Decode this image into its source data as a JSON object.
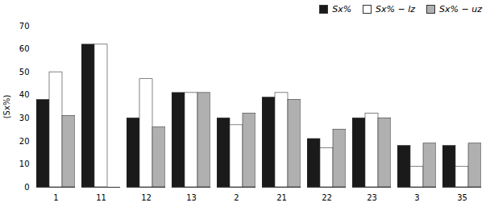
{
  "chart_data": {
    "type": "bar",
    "ylabel": "(Sx%)",
    "categories": [
      "1",
      "11",
      "12",
      "13",
      "2",
      "21",
      "22",
      "23",
      "3",
      "35"
    ],
    "series": [
      {
        "name": "Sx%",
        "color": "#1a1a1a",
        "values": [
          38,
          62,
          30,
          41,
          30,
          39,
          21,
          30,
          18,
          18
        ]
      },
      {
        "name": "Sx% − lz",
        "color": "#ffffff",
        "values": [
          50,
          62,
          47,
          41,
          27,
          41,
          17,
          32,
          9,
          9
        ]
      },
      {
        "name": "Sx% − uz",
        "color": "#b0b0b0",
        "values": [
          31,
          0,
          26,
          41,
          32,
          38,
          25,
          30,
          19,
          19
        ]
      }
    ],
    "ylim": [
      0,
      70
    ],
    "yticks": [
      0,
      10,
      20,
      30,
      40,
      50,
      60,
      70
    ],
    "grid": false,
    "legend": "upper right"
  }
}
